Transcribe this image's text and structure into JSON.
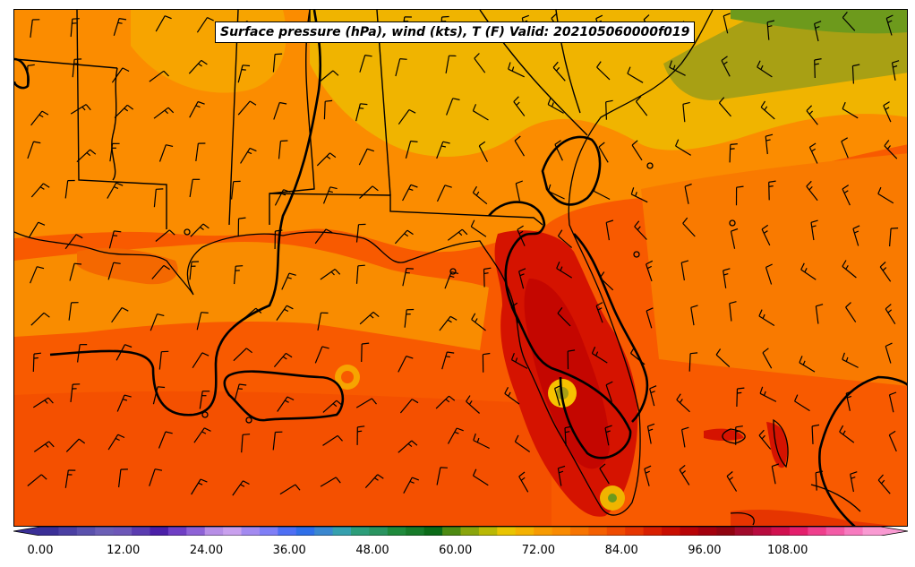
{
  "title": "Surface pressure (hPa), wind (kts), T (F) Valid: 202105060000f019",
  "colorbar": {
    "tick_labels": [
      "0.00",
      "12.00",
      "24.00",
      "36.00",
      "48.00",
      "60.00",
      "72.00",
      "84.00",
      "96.00",
      "108.00"
    ],
    "colors": [
      "#3a2f97",
      "#4a3fa3",
      "#5a51ad",
      "#6b5fb6",
      "#6d57b8",
      "#5a3cb0",
      "#4b1fa8",
      "#6f3ec4",
      "#8e62d6",
      "#b78ee6",
      "#c9a0ee",
      "#a38af0",
      "#7f7ef6",
      "#4e6ff4",
      "#2f6fe8",
      "#3a87cf",
      "#36a0ae",
      "#2d9e7a",
      "#2a9460",
      "#1f8a3c",
      "#177b2a",
      "#0b6b18",
      "#4d8a12",
      "#8aa50c",
      "#b9b804",
      "#e9c400",
      "#f4b100",
      "#f79a00",
      "#f98a00",
      "#f77400",
      "#f45f00",
      "#ef4a00",
      "#e63500",
      "#d81f00",
      "#c90e00",
      "#b80306",
      "#a3000d",
      "#900310",
      "#a10a2b",
      "#b80b3e",
      "#d1104f",
      "#e41e6c",
      "#ef3e8c",
      "#f35ba6",
      "#f77abf",
      "#f99ad2"
    ]
  },
  "map_colors": {
    "ocean_warm": "#f85a00",
    "land_orange": "#fb8c00",
    "north_yellow": "#f0b400",
    "land_darkorange": "#f46800",
    "peninsula_red": "#d51300",
    "hot_core": "#c40600",
    "olive": "#a8a014",
    "green": "#5d9a1e"
  }
}
